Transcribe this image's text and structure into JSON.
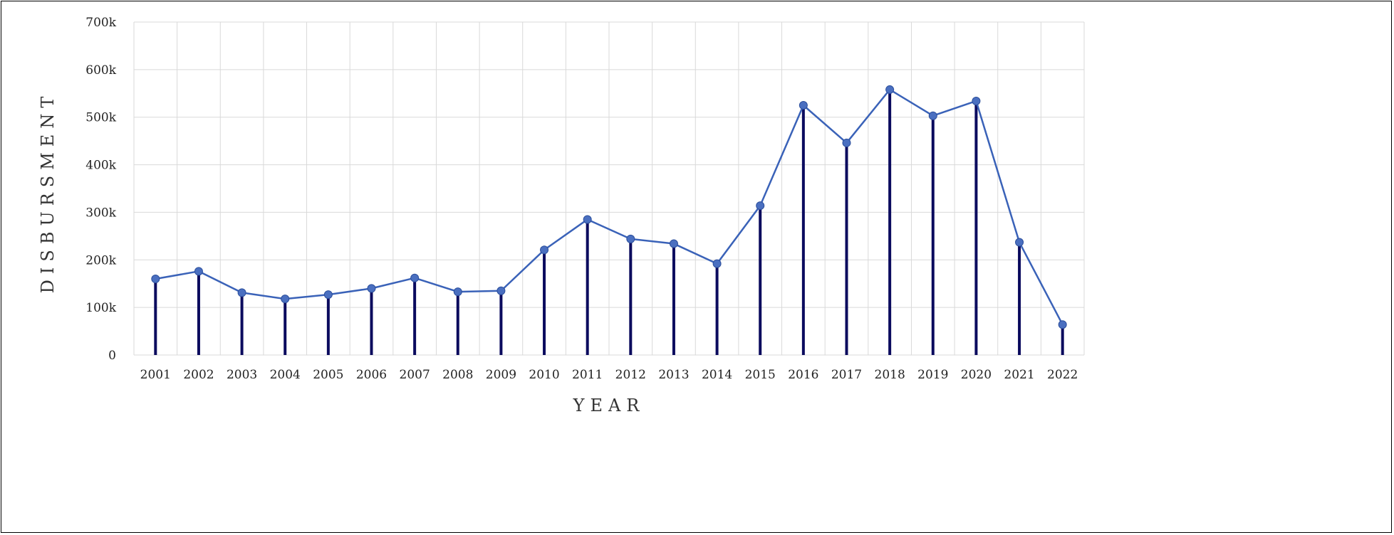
{
  "chart_data": {
    "type": "line",
    "xlabel": "YEAR",
    "ylabel": "DISBURSMENT",
    "x": [
      "2001",
      "2002",
      "2003",
      "2004",
      "2005",
      "2006",
      "2007",
      "2008",
      "2009",
      "2010",
      "2011",
      "2012",
      "2013",
      "2014",
      "2015",
      "2016",
      "2017",
      "2018",
      "2019",
      "2020",
      "2021",
      "2022"
    ],
    "series": [
      {
        "values": [
          160000,
          176000,
          131000,
          118000,
          127000,
          140000,
          162000,
          133000,
          135000,
          221000,
          285000,
          244000,
          234000,
          192000,
          314000,
          525000,
          446000,
          558000,
          503000,
          534000,
          237000,
          64000
        ]
      }
    ],
    "ylim": [
      0,
      700000
    ],
    "yticks": [
      0,
      100000,
      200000,
      300000,
      400000,
      500000,
      600000,
      700000
    ],
    "ytick_labels": [
      "0",
      "100k",
      "200k",
      "300k",
      "400k",
      "500k",
      "600k",
      "700k"
    ],
    "grid": true,
    "legend": "none",
    "colors": {
      "line": "#3a62b8",
      "marker": "#4a6fc0",
      "stem": "#0b0b5e",
      "grid": "#d9d9d9"
    }
  }
}
